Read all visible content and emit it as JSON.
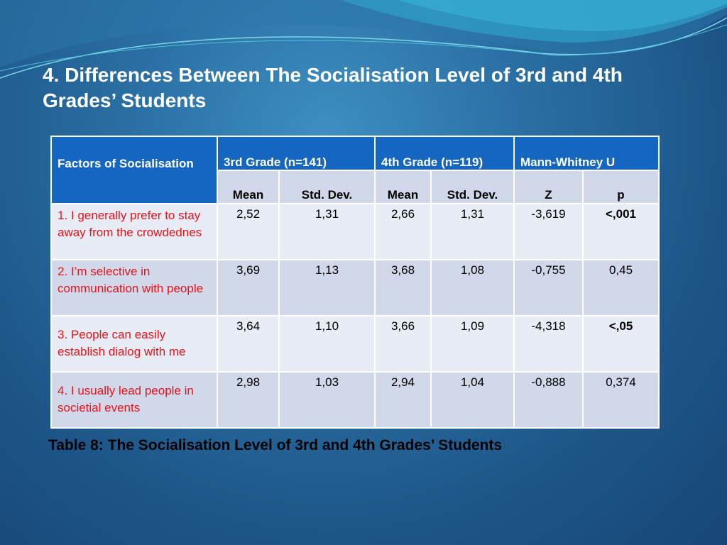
{
  "title": "4. Differences Between The Socialisation Level of 3rd and 4th Grades’ Students",
  "table": {
    "factor_header": "Factors of Socialisation",
    "groups": [
      "3rd Grade (n=141)",
      "4th Grade (n=119)",
      "Mann-Whitney U"
    ],
    "subheaders": [
      "Mean",
      "Std. Dev.",
      "Mean",
      "Std. Dev.",
      "Z",
      "p"
    ],
    "rows": [
      {
        "label": "1. I generally prefer to stay away from the crowdednes",
        "values": [
          "2,52",
          "1,31",
          "2,66",
          "1,31",
          "-3,619",
          "<,001"
        ]
      },
      {
        "label": "2. I’m selective in communication with people",
        "values": [
          "3,69",
          "1,13",
          "3,68",
          "1,08",
          "-0,755",
          "0,45"
        ]
      },
      {
        "label": "3. People can easily establish dialog with me",
        "values": [
          "3,64",
          "1,10",
          "3,66",
          "1,09",
          "-4,318",
          "<,05"
        ]
      },
      {
        "label": "4. I usually lead people in societial events",
        "values": [
          "2,98",
          "1,03",
          "2,94",
          "1,04",
          "-0,888",
          "0,374"
        ]
      }
    ]
  },
  "caption": "Table 8: The Socialisation Level of 3rd and 4th Grades’ Students",
  "colors": {
    "header": "#1466c0",
    "label_text": "#e8121a"
  }
}
